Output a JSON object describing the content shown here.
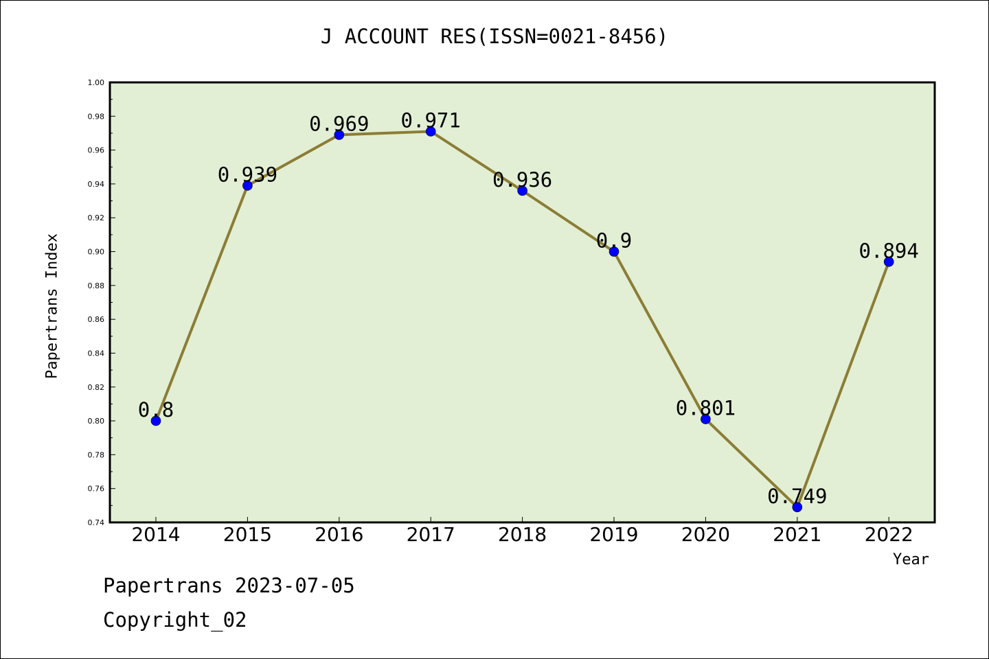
{
  "chart_data": {
    "type": "line",
    "title": "J ACCOUNT RES(ISSN=0021-8456)",
    "xlabel": "Year",
    "ylabel": "Papertrans Index",
    "categories": [
      "2014",
      "2015",
      "2016",
      "2017",
      "2018",
      "2019",
      "2020",
      "2021",
      "2022"
    ],
    "series": [
      {
        "values": [
          0.8,
          0.939,
          0.969,
          0.971,
          0.936,
          0.9,
          0.801,
          0.749,
          0.894
        ],
        "labels": [
          "0.8",
          "0.939",
          "0.969",
          "0.971",
          "0.936",
          "0.9",
          "0.801",
          "0.749",
          "0.894"
        ]
      }
    ],
    "ylim": [
      0.74,
      1.0
    ],
    "yticks": [
      "0.74",
      "0.76",
      "0.78",
      "0.80",
      "0.82",
      "0.84",
      "0.86",
      "0.88",
      "0.90",
      "0.92",
      "0.94",
      "0.96",
      "0.98",
      "1.00"
    ],
    "grid": false,
    "colors": {
      "plot_background": "#e2efd5",
      "line": "#8b7d35",
      "marker": "#0000ff"
    }
  },
  "footer": {
    "date": "Papertrans 2023-07-05",
    "copyright": "Copyright_02"
  }
}
